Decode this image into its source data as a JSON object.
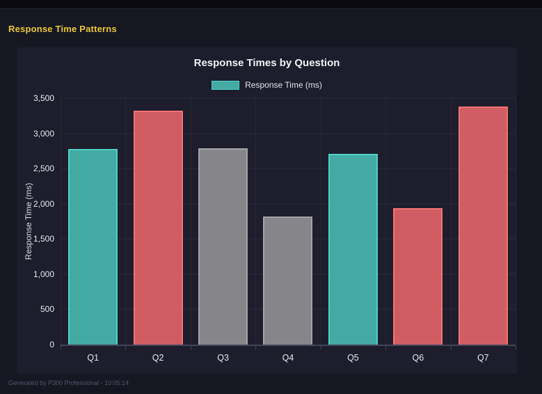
{
  "page": {
    "title": "Response Time Patterns",
    "footer": "Generated by P300 Professional - 10:05:14"
  },
  "colors": {
    "page_bg": "#171722",
    "topbar_bg": "#0a0a10",
    "card_bg": "#1d1d2c",
    "gridline": "#2a2a3c",
    "axis": "#45455a",
    "heading_yellow": "#e9c838",
    "text_primary": "#f0f0f3",
    "text_muted": "#4f5566"
  },
  "chart_data": {
    "type": "bar",
    "title": "Response Times by Question",
    "xlabel": "",
    "ylabel": "Response Time (ms)",
    "categories": [
      "Q1",
      "Q2",
      "Q3",
      "Q4",
      "Q5",
      "Q6",
      "Q7"
    ],
    "series": [
      {
        "name": "Response Time (ms)",
        "values": [
          2780,
          3320,
          2790,
          1820,
          2710,
          1940,
          3380
        ]
      }
    ],
    "bar_color_keys": [
      "teal",
      "red",
      "gray",
      "gray",
      "teal",
      "red",
      "red"
    ],
    "palette": {
      "teal": {
        "fill": "#43aaa4",
        "border": "#4fd1c5"
      },
      "red": {
        "fill": "#d05d63",
        "border": "#f47272"
      },
      "gray": {
        "fill": "#86868a",
        "border": "#a2a2a8"
      }
    },
    "ylim": [
      0,
      3500
    ],
    "yticks": [
      "0",
      "500",
      "1,000",
      "1,500",
      "2,000",
      "2,500",
      "3,000",
      "3,500"
    ],
    "grid": true,
    "legend_position": "top",
    "legend": [
      "Response Time (ms)"
    ]
  }
}
